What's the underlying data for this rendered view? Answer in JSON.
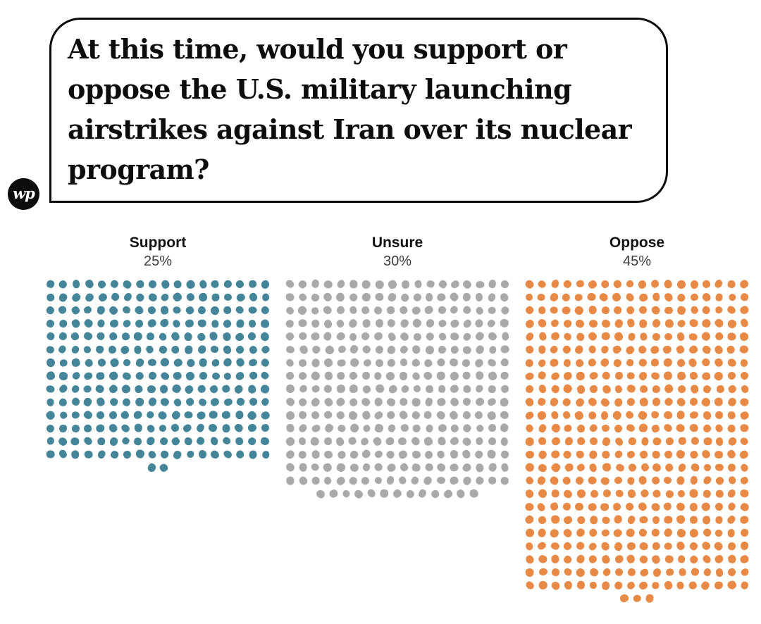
{
  "header": {
    "logo_text": "wp",
    "question": "At this time, would you support or oppose the U.S. military launching airstrikes against Iran over its nuclear program?",
    "question_lines": [
      "At this time, would you support or",
      "oppose the U.S. military launching",
      "airstrikes against Iran over its nuclear",
      "program?"
    ]
  },
  "chart_data": {
    "type": "unit-dot-matrix",
    "title": "At this time, would you support or oppose the U.S. military launching airstrikes against Iran over its nuclear program?",
    "categories": [
      "Support",
      "Unsure",
      "Oppose"
    ],
    "values": [
      25,
      30,
      45
    ],
    "value_labels": [
      "25%",
      "30%",
      "45%"
    ],
    "unit": "percent of respondents",
    "colors": [
      "#44859a",
      "#a9a9a9",
      "#e88a46"
    ],
    "grid": false,
    "legend_position": "column-headers",
    "dots": {
      "per_row": 18,
      "counts": [
        254,
        301,
        435
      ],
      "last_partial_row": "centered"
    }
  }
}
